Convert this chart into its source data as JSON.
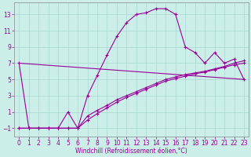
{
  "xlabel": "Windchill (Refroidissement éolien,°C)",
  "background_color": "#cceee8",
  "line_color": "#990099",
  "xlim": [
    -0.5,
    23.5
  ],
  "ylim": [
    -2,
    14.5
  ],
  "xticks": [
    0,
    1,
    2,
    3,
    4,
    5,
    6,
    7,
    8,
    9,
    10,
    11,
    12,
    13,
    14,
    15,
    16,
    17,
    18,
    19,
    20,
    21,
    22,
    23
  ],
  "yticks": [
    -1,
    1,
    3,
    5,
    7,
    9,
    11,
    13
  ],
  "series1_x": [
    0,
    1,
    2,
    3,
    4,
    5,
    6,
    7,
    8,
    9,
    10,
    11,
    12,
    13,
    14,
    15,
    16,
    17,
    18,
    19,
    20,
    21,
    22,
    23
  ],
  "series1_y": [
    7,
    -1,
    -1,
    -1,
    -1,
    1,
    -1,
    3,
    5.5,
    8,
    10.3,
    12,
    13,
    13.2,
    13.7,
    13.7,
    13,
    9,
    8.3,
    7.0,
    8.3,
    7.0,
    7.5,
    5.0
  ],
  "series2_x": [
    0,
    1,
    2,
    3,
    4,
    5,
    6,
    7,
    8,
    9,
    10,
    11,
    12,
    13,
    14,
    15,
    16,
    17,
    18,
    19,
    20,
    21,
    22,
    23
  ],
  "series2_y": [
    -1,
    -1,
    -1,
    -1,
    -1,
    -1,
    -1,
    0.5,
    1.2,
    1.8,
    2.5,
    3.0,
    3.5,
    4.0,
    4.5,
    5.0,
    5.3,
    5.6,
    5.8,
    6.0,
    6.3,
    6.6,
    7.0,
    7.3
  ],
  "series3_x": [
    0,
    1,
    2,
    3,
    4,
    5,
    6,
    7,
    8,
    9,
    10,
    11,
    12,
    13,
    14,
    15,
    16,
    17,
    18,
    19,
    20,
    21,
    22,
    23
  ],
  "series3_y": [
    -1,
    -1,
    -1,
    -1,
    -1,
    -1,
    -1,
    0.0,
    0.8,
    1.5,
    2.2,
    2.8,
    3.3,
    3.8,
    4.3,
    4.8,
    5.1,
    5.4,
    5.7,
    5.9,
    6.2,
    6.5,
    6.8,
    7.0
  ],
  "straight_line_x": [
    0,
    23
  ],
  "straight_line_y": [
    7,
    5.0
  ],
  "xlabel_fontsize": 5.5,
  "tick_fontsize": 5.5,
  "linewidth": 0.8,
  "markersize": 3.5,
  "markeredgewidth": 0.8
}
